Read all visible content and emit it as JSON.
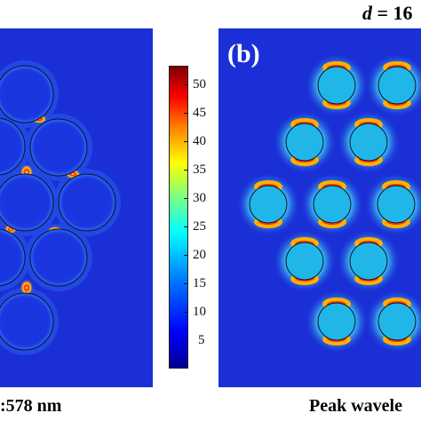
{
  "header": {
    "d_var": "d",
    "d_text": " = 16"
  },
  "panel_b": {
    "label": "(b)"
  },
  "colorbar": {
    "ticks": [
      "50",
      "45",
      "40",
      "35",
      "30",
      "25",
      "20",
      "15",
      "10",
      "5"
    ]
  },
  "captions": {
    "left": ":578 nm",
    "right": "Peak wavele"
  },
  "colors": {
    "background_field": "#1a2fd6",
    "hotspot": "#ff2a00",
    "disk_fill": "#21b6e8"
  }
}
